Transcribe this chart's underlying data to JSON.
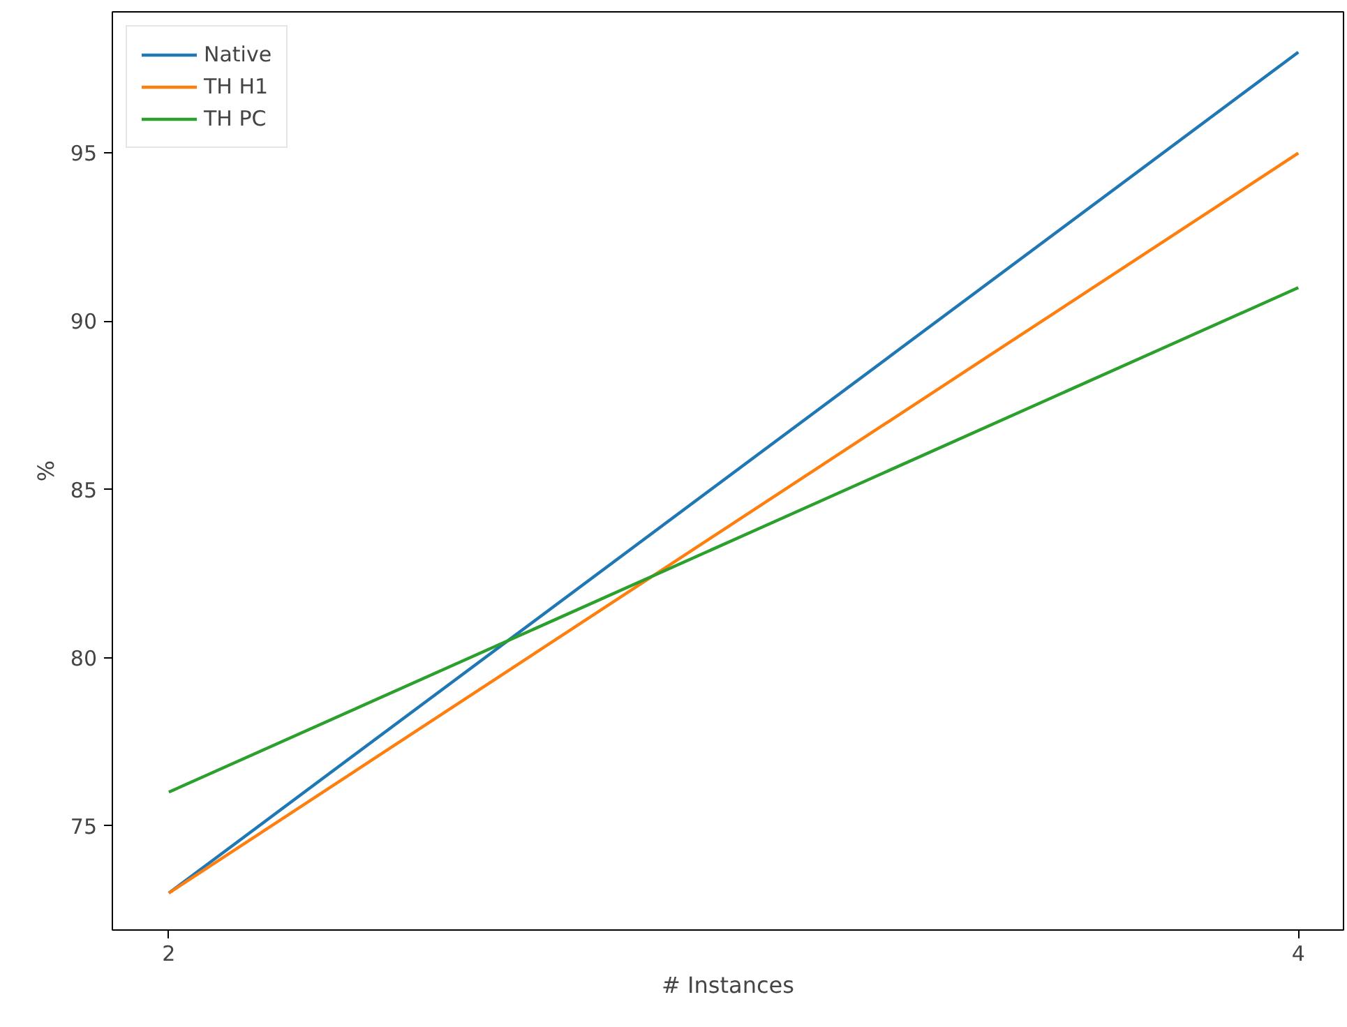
{
  "chart_data": {
    "type": "line",
    "xlabel": "# Instances",
    "ylabel": "%",
    "x": [
      2,
      4
    ],
    "series": [
      {
        "name": "Native",
        "color": "#1f77b4",
        "values": [
          73,
          98
        ]
      },
      {
        "name": "TH H1",
        "color": "#ff7f0e",
        "values": [
          73,
          95
        ]
      },
      {
        "name": "TH PC",
        "color": "#2ca02c",
        "values": [
          76,
          91
        ]
      }
    ],
    "xlim": [
      1.9,
      4.08
    ],
    "ylim": [
      71.9,
      99.2
    ],
    "xticks": [
      2,
      4
    ],
    "yticks": [
      75,
      80,
      85,
      90,
      95
    ],
    "grid": false,
    "legend": "top left",
    "marker": "none",
    "line_style": "solid"
  }
}
